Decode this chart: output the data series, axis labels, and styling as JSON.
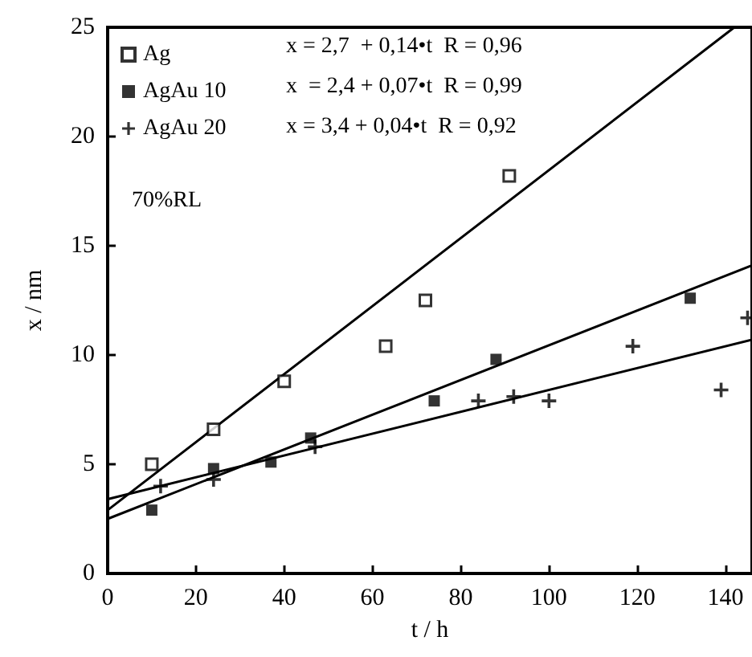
{
  "chart_data": {
    "type": "scatter",
    "xlabel": "t / h",
    "ylabel": "x / nm",
    "xlim": [
      0,
      146
    ],
    "xticks": [
      0,
      20,
      40,
      60,
      80,
      100,
      120,
      140
    ],
    "ylim": [
      0,
      25
    ],
    "yticks": [
      0,
      5,
      10,
      15,
      20,
      25
    ],
    "grid": false,
    "legend": "top left",
    "annotations": [
      "x = 2,7  + 0,14•t  R = 0,96",
      "x  = 2,4 + 0,07•t  R = 0,99",
      "x = 3,4 + 0,04•t  R = 0,92",
      "70%RL"
    ],
    "series": [
      {
        "name": "Ag",
        "color": "#000000",
        "marker": "square",
        "x": [
          10,
          24,
          40,
          63,
          72,
          91
        ],
        "values": [
          5.0,
          6.6,
          8.8,
          10.4,
          12.5,
          18.2
        ]
      },
      {
        "name": "AgAu 10",
        "color": "#000000",
        "marker": "square",
        "x": [
          10,
          24,
          37,
          46,
          74,
          88,
          132
        ],
        "values": [
          2.9,
          4.8,
          5.1,
          6.2,
          7.9,
          9.8,
          12.6
        ]
      },
      {
        "name": "AgAu 20",
        "color": "#000000",
        "marker": "cross",
        "x": [
          12,
          24,
          47,
          84,
          92,
          100,
          119,
          139,
          145
        ],
        "values": [
          4.0,
          4.3,
          5.8,
          7.9,
          8.1,
          7.9,
          10.4,
          8.4,
          11.7
        ]
      },
      {
        "type": "line",
        "color": "#000000",
        "marker": "none",
        "x": [
          0,
          142
        ],
        "values": [
          2.9,
          25
        ]
      },
      {
        "type": "line",
        "color": "#000000",
        "marker": "none",
        "x": [
          0,
          146
        ],
        "values": [
          2.5,
          14.1
        ]
      },
      {
        "type": "line",
        "color": "#000000",
        "marker": "none",
        "x": [
          0,
          146
        ],
        "values": [
          3.4,
          10.7
        ]
      }
    ]
  }
}
